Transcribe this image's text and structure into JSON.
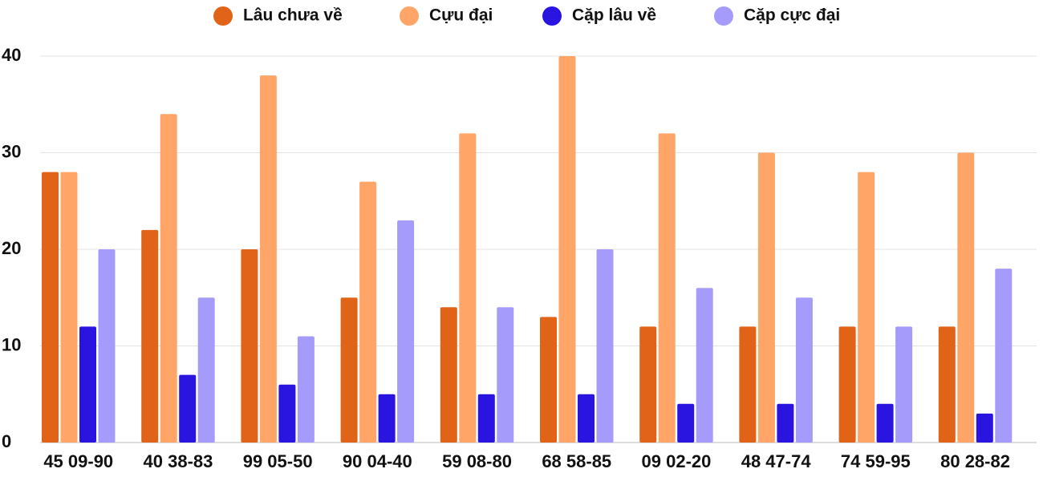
{
  "chart_data": {
    "type": "bar",
    "categories": [
      "45 09-90",
      "40 38-83",
      "99 05-50",
      "90 04-40",
      "59 08-80",
      "68 58-85",
      "09 02-20",
      "48 47-74",
      "74 59-95",
      "80 28-82"
    ],
    "series": [
      {
        "name": "Lâu chưa về",
        "color": "#e06317",
        "values": [
          28,
          22,
          20,
          15,
          14,
          13,
          12,
          12,
          12,
          12
        ]
      },
      {
        "name": "Cựu đại",
        "color": "#ffa568",
        "values": [
          28,
          34,
          38,
          27,
          32,
          40,
          32,
          30,
          28,
          30
        ]
      },
      {
        "name": "Cặp lâu về",
        "color": "#2a14e0",
        "values": [
          12,
          7,
          6,
          5,
          5,
          5,
          4,
          4,
          4,
          3
        ]
      },
      {
        "name": "Cặp cực đại",
        "color": "#a49bfa",
        "values": [
          20,
          15,
          11,
          23,
          14,
          20,
          16,
          15,
          12,
          18
        ]
      }
    ],
    "ylim": [
      0,
      40
    ],
    "yticks": [
      0,
      10,
      20,
      30,
      40
    ],
    "grid": true,
    "legend": "top"
  }
}
